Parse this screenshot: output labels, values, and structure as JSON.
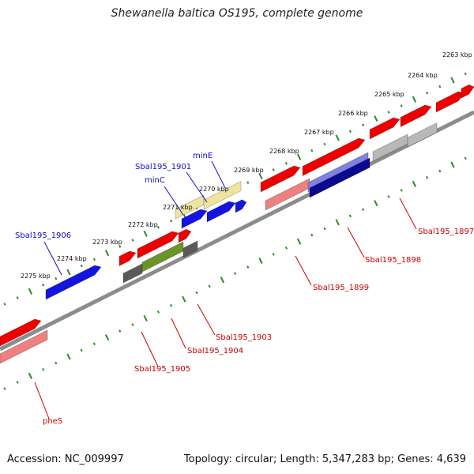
{
  "title": "Shewanella baltica OS195, complete genome",
  "accession_text": "Accession: NC_009997",
  "summary_text": "Topology: circular; Length: 5,347,283 bp; Genes: 4,639",
  "colors": {
    "backbone": "#8c8c8c",
    "tick": "#2a8a2a",
    "label_blue": "#1010c0",
    "label_red": "#cc0000",
    "gene_blue": "#1414e0",
    "gene_red": "#ee0000",
    "gene_pink": "#ee8080",
    "gene_yellow": "#eee4a0",
    "gene_navy": "#0a0a90",
    "gene_lavender": "#8080e0",
    "gene_gray": "#5a5a5a",
    "gene_lightgray": "#b8b8b8",
    "gene_olive": "#6a9628"
  },
  "kbp_ticks": [
    "2263 kbp",
    "2264 kbp",
    "2265 kbp",
    "2266 kbp",
    "2267 kbp",
    "2268 kbp",
    "2269 kbp",
    "2270 kbp",
    "2271 kbp",
    "2272 kbp",
    "2273 kbp",
    "2274 kbp",
    "2275 kbp"
  ],
  "gene_labels": [
    {
      "name": "minE",
      "color": "label_blue"
    },
    {
      "name": "Sbal195_1901",
      "color": "label_blue"
    },
    {
      "name": "minC",
      "color": "label_blue"
    },
    {
      "name": "Sbal195_1906",
      "color": "label_blue"
    },
    {
      "name": "Sbal195_1897",
      "color": "label_red"
    },
    {
      "name": "Sbal195_1898",
      "color": "label_red"
    },
    {
      "name": "Sbal195_1899",
      "color": "label_red"
    },
    {
      "name": "Sbal195_1903",
      "color": "label_red"
    },
    {
      "name": "Sbal195_1904",
      "color": "label_red"
    },
    {
      "name": "Sbal195_1905",
      "color": "label_red"
    },
    {
      "name": "pheS",
      "color": "label_red"
    }
  ]
}
